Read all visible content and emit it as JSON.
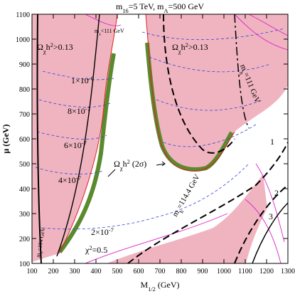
{
  "chart_data": {
    "type": "contour",
    "title": [
      "m",
      "16",
      "=5 TeV,  m",
      "A",
      "=500 GeV"
    ],
    "xlabel": [
      "M",
      "1/2",
      " (GeV)"
    ],
    "ylabel": "μ (GeV)",
    "xlim": [
      100,
      1300
    ],
    "xticks": [
      100,
      200,
      300,
      400,
      500,
      600,
      700,
      800,
      900,
      1000,
      1100,
      1200,
      1300
    ],
    "ylim": [
      100,
      1100
    ],
    "yticks": [
      100,
      200,
      300,
      400,
      500,
      600,
      700,
      800,
      900,
      1000,
      1100
    ],
    "annotations": [
      [
        "1×10",
        "-6"
      ],
      [
        "8×10",
        "-7"
      ],
      [
        "6×10",
        "-7"
      ],
      [
        "4×10",
        "-7"
      ],
      [
        "2×10",
        "-7"
      ],
      [
        "χ",
        "2",
        "=0.5"
      ],
      [
        "Ω",
        "χ",
        "h",
        "2",
        " (2σ)"
      ],
      [
        "Ω",
        "χ",
        "h",
        "2",
        ">0.13"
      ],
      [
        "Ω",
        "χ",
        "h",
        "2",
        ">0.13"
      ],
      [
        "m",
        "χ",
        "<111 GeV"
      ],
      [
        "m",
        "h",
        "=111 GeV"
      ],
      [
        "m",
        "h",
        "=114.4 GeV"
      ],
      [
        "m",
        "h",
        "=104 GeV"
      ],
      [
        "1"
      ],
      [
        "2"
      ],
      [
        "3"
      ]
    ]
  }
}
